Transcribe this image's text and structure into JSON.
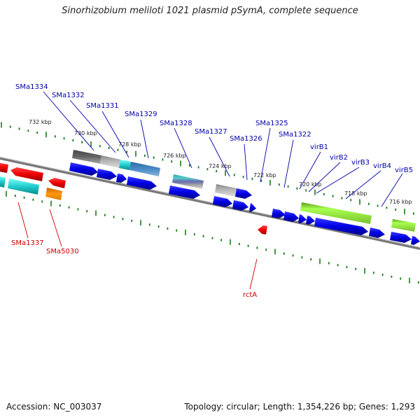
{
  "title": "Sinorhizobium meliloti 1021 plasmid pSymA, complete sequence",
  "footer": {
    "accession": "Accession: NC_003037",
    "summary": "Topology: circular; Length: 1,354,226 bp; Genes: 1,293"
  },
  "tick_labels": [
    "732 kbp",
    "730 kbp",
    "728 kbp",
    "726 kbp",
    "724 kbp",
    "722 kbp",
    "720 kbp",
    "718 kbp",
    "716 kbp"
  ],
  "gene_labels_top": [
    "SMa1334",
    "SMa1332",
    "SMa1331",
    "SMa1329",
    "SMa1328",
    "SMa1327",
    "SMa1326",
    "SMa1325",
    "SMa1322",
    "virB1",
    "virB2",
    "virB3",
    "virB4",
    "virB5"
  ],
  "gene_labels_bottom": [
    "SMa1337",
    "SMa5030",
    "rctA"
  ],
  "colors": {
    "forward_gene": "#0000e0",
    "reverse_gene": "#ee0000",
    "backbone": "#888888",
    "tick": "#1a7a1a",
    "label_blue": "#0000aa",
    "label_red": "#cc0000"
  }
}
